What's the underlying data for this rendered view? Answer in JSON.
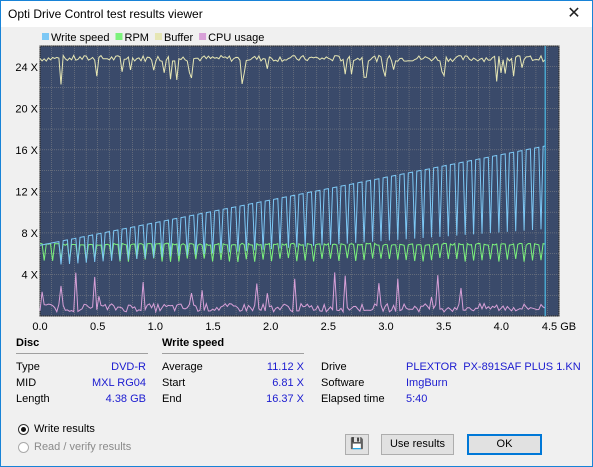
{
  "window": {
    "title": "Opti Drive Control test results viewer",
    "close_glyph": "✕"
  },
  "chart_data": {
    "type": "line",
    "legend": [
      {
        "name": "Write speed",
        "color": "#7dc8f5"
      },
      {
        "name": "RPM",
        "color": "#7cf27c"
      },
      {
        "name": "Buffer",
        "color": "#e6e6b4"
      },
      {
        "name": "CPU usage",
        "color": "#d8a0d8"
      }
    ],
    "xlim": [
      0,
      4.5
    ],
    "ylim": [
      0,
      26
    ],
    "x_ticks": [
      "0.0",
      "0.5",
      "1.0",
      "1.5",
      "2.0",
      "2.5",
      "3.0",
      "3.5",
      "4.0",
      "4.5 GB"
    ],
    "y_ticks": [
      "4 X",
      "8 X",
      "12 X",
      "16 X",
      "20 X",
      "24 X"
    ],
    "y_tick_values": [
      4,
      8,
      12,
      16,
      20,
      24
    ],
    "x_tick_values": [
      0,
      0.5,
      1.0,
      1.5,
      2.0,
      2.5,
      3.0,
      3.5,
      4.0,
      4.5
    ],
    "write_speed_start": 6.81,
    "write_speed_end": 16.37,
    "rpm_level": 6.9,
    "buffer_level": 24.8,
    "cpu_level": 0.8,
    "disc_end_gb": 4.38,
    "grid": true,
    "background": "#3a4a6a",
    "grid_color": "#8c8c8c"
  },
  "disc": {
    "heading": "Disc",
    "type_label": "Type",
    "type_value": "DVD-R",
    "mid_label": "MID",
    "mid_value": "MXL RG04",
    "length_label": "Length",
    "length_value": "4.38 GB"
  },
  "write_speed": {
    "heading": "Write speed",
    "average_label": "Average",
    "average_value": "11.12 X",
    "start_label": "Start",
    "start_value": "6.81 X",
    "end_label": "End",
    "end_value": "16.37 X"
  },
  "drive": {
    "drive_label": "Drive",
    "drive_value": "PLEXTOR  PX-891SAF PLUS 1.KN",
    "software_label": "Software",
    "software_value": "ImgBurn",
    "elapsed_label": "Elapsed time",
    "elapsed_value": "5:40"
  },
  "options": {
    "write_results": "Write results",
    "read_verify": "Read / verify results"
  },
  "buttons": {
    "save_icon": "💾",
    "use_results": "Use results",
    "ok": "OK"
  }
}
